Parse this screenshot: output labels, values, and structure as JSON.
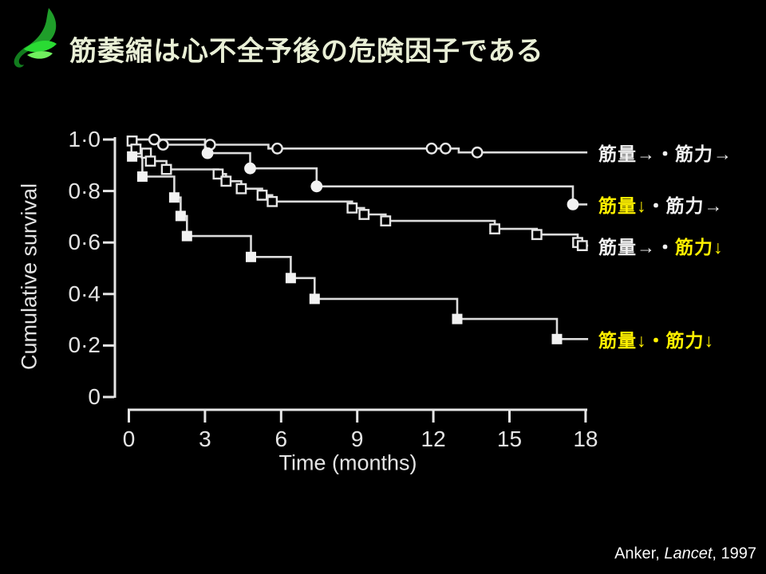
{
  "slide": {
    "title": "筋萎縮は心不全予後の危険因子である",
    "logo_icon": "green-leaf-wing-logo",
    "citation": {
      "prefix": "Anker, ",
      "journal": "Lancet",
      "suffix": ", 1997"
    },
    "colors": {
      "background": "#000000",
      "title_text": "#E9EFD6",
      "figure_text": "#E4E4E4",
      "figure_line": "#E6E6E6",
      "curve_stroke": "#DCDCDC",
      "marker_fill": "#F2F2F2",
      "accent_yellow": "#FFF100",
      "label_white": "#F2F2F2",
      "logo_green_dark": "#127C1E",
      "logo_green_mid": "#1F9E2A",
      "logo_green_bright": "#2ADB33",
      "logo_green_light": "#70F05E"
    }
  },
  "chart_data": {
    "type": "line",
    "km_style": "step",
    "title": "",
    "xlabel": "Time (months)",
    "ylabel": "Cumulative survival",
    "xlim": [
      0,
      18
    ],
    "ylim": [
      0,
      1.0
    ],
    "grid": false,
    "legend_position": "right-of-curve-ends",
    "xticks": [
      0,
      3,
      6,
      9,
      12,
      15,
      18
    ],
    "yticks": [
      {
        "value": 1.0,
        "label": "1·0"
      },
      {
        "value": 0.8,
        "label": "0·8"
      },
      {
        "value": 0.6,
        "label": "0·6"
      },
      {
        "value": 0.4,
        "label": "0·4"
      },
      {
        "value": 0.2,
        "label": "0·2"
      },
      {
        "value": 0.0,
        "label": "0"
      }
    ],
    "series": [
      {
        "name": "筋量→・筋力→",
        "marker": "open-circle",
        "marker_role": "censor",
        "steps": [
          [
            0,
            1.0
          ],
          [
            1.2,
            0.98
          ],
          [
            5.5,
            0.965
          ],
          [
            13.0,
            0.95
          ]
        ],
        "end_month": 18.07,
        "marks": [
          [
            1.0,
            1.0
          ],
          [
            1.35,
            0.98
          ],
          [
            3.2,
            0.98
          ],
          [
            5.85,
            0.965
          ],
          [
            11.93,
            0.965
          ],
          [
            12.48,
            0.965
          ],
          [
            13.73,
            0.95
          ]
        ],
        "label_parts": [
          {
            "text": "筋量→・筋力→",
            "color": "white"
          }
        ]
      },
      {
        "name": "筋量↓・筋力→",
        "marker": "filled-circle",
        "marker_role": "event",
        "steps": [
          [
            0,
            1.0
          ],
          [
            3.0,
            0.947
          ],
          [
            4.78,
            0.888
          ],
          [
            7.4,
            0.818
          ],
          [
            17.5,
            0.748
          ]
        ],
        "end_month": 18.07,
        "marks": [
          [
            3.1,
            0.947
          ],
          [
            4.78,
            0.888
          ],
          [
            7.4,
            0.818
          ],
          [
            17.5,
            0.748
          ]
        ],
        "label_parts": [
          {
            "text": "筋量↓",
            "color": "yellow"
          },
          {
            "text": "・筋力→",
            "color": "white"
          }
        ]
      },
      {
        "name": "筋量→・筋力↓",
        "marker": "open-square",
        "marker_role": "event",
        "steps": [
          [
            0,
            1.0
          ],
          [
            0.13,
            0.994
          ],
          [
            0.28,
            0.963
          ],
          [
            0.69,
            0.947
          ],
          [
            0.85,
            0.916
          ],
          [
            1.48,
            0.884
          ],
          [
            3.52,
            0.866
          ],
          [
            3.83,
            0.838
          ],
          [
            4.43,
            0.809
          ],
          [
            5.25,
            0.784
          ],
          [
            5.65,
            0.759
          ],
          [
            8.8,
            0.734
          ],
          [
            9.27,
            0.709
          ],
          [
            10.12,
            0.684
          ],
          [
            14.42,
            0.653
          ],
          [
            16.08,
            0.631
          ],
          [
            17.69,
            0.6
          ],
          [
            17.87,
            0.588
          ]
        ],
        "end_month": 18.1,
        "marks": [
          [
            0.13,
            0.994
          ],
          [
            0.28,
            0.963
          ],
          [
            0.69,
            0.947
          ],
          [
            0.85,
            0.916
          ],
          [
            1.48,
            0.884
          ],
          [
            3.52,
            0.866
          ],
          [
            3.83,
            0.838
          ],
          [
            4.43,
            0.809
          ],
          [
            5.25,
            0.784
          ],
          [
            5.65,
            0.759
          ],
          [
            8.8,
            0.734
          ],
          [
            9.27,
            0.709
          ],
          [
            10.12,
            0.684
          ],
          [
            14.42,
            0.653
          ],
          [
            16.08,
            0.631
          ],
          [
            17.69,
            0.6
          ],
          [
            17.87,
            0.588
          ]
        ],
        "label_parts": [
          {
            "text": "筋量→・",
            "color": "white"
          },
          {
            "text": "筋力↓",
            "color": "yellow"
          }
        ]
      },
      {
        "name": "筋量↓・筋力↓",
        "marker": "filled-square",
        "marker_role": "event",
        "steps": [
          [
            0,
            1.0
          ],
          [
            0.13,
            0.934
          ],
          [
            0.53,
            0.856
          ],
          [
            1.79,
            0.775
          ],
          [
            2.04,
            0.703
          ],
          [
            2.29,
            0.625
          ],
          [
            4.81,
            0.544
          ],
          [
            6.38,
            0.462
          ],
          [
            7.32,
            0.381
          ],
          [
            12.94,
            0.303
          ],
          [
            16.87,
            0.225
          ]
        ],
        "end_month": 18.1,
        "marks": [
          [
            0.13,
            0.934
          ],
          [
            0.53,
            0.856
          ],
          [
            1.79,
            0.775
          ],
          [
            2.04,
            0.703
          ],
          [
            2.29,
            0.625
          ],
          [
            4.81,
            0.544
          ],
          [
            6.38,
            0.462
          ],
          [
            7.32,
            0.381
          ],
          [
            12.94,
            0.303
          ],
          [
            16.87,
            0.225
          ]
        ],
        "label_parts": [
          {
            "text": "筋量↓・筋力↓",
            "color": "yellow"
          }
        ]
      }
    ]
  }
}
